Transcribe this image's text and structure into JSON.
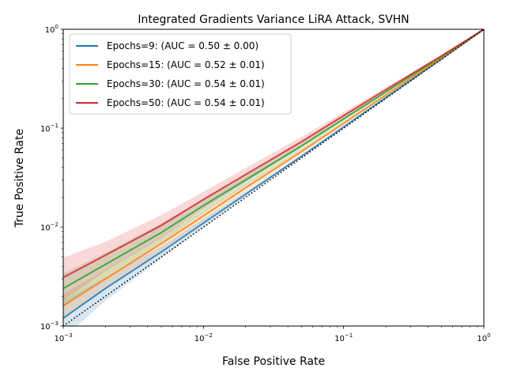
{
  "chart_data": {
    "type": "line",
    "title": "Integrated Gradients Variance LiRA Attack, SVHN",
    "xlabel": "False Positive Rate",
    "ylabel": "True Positive Rate",
    "xscale": "log",
    "yscale": "log",
    "xlim": [
      0.001,
      1
    ],
    "ylim": [
      0.001,
      1
    ],
    "x_ticks": [
      {
        "value": 0.001,
        "base": "10",
        "exp": "−3"
      },
      {
        "value": 0.01,
        "base": "10",
        "exp": "−2"
      },
      {
        "value": 0.1,
        "base": "10",
        "exp": "−1"
      },
      {
        "value": 1,
        "base": "10",
        "exp": "0"
      }
    ],
    "y_ticks": [
      {
        "value": 0.001,
        "base": "10",
        "exp": "−3"
      },
      {
        "value": 0.01,
        "base": "10",
        "exp": "−2"
      },
      {
        "value": 0.1,
        "base": "10",
        "exp": "−1"
      },
      {
        "value": 1,
        "base": "10",
        "exp": "0"
      }
    ],
    "legend_position": "top-left",
    "grid": false,
    "series": [
      {
        "name": "Epochs=9: (AUC = 0.50 ± 0.00)",
        "color": "#1f77b4",
        "x": [
          0.001,
          0.002,
          0.005,
          0.01,
          0.02,
          0.05,
          0.1,
          0.2,
          0.5,
          1
        ],
        "y": [
          0.0012,
          0.0024,
          0.0056,
          0.011,
          0.0215,
          0.052,
          0.103,
          0.204,
          0.502,
          1
        ],
        "lower": [
          0.00075,
          0.0018,
          0.0048,
          0.0099,
          0.0203,
          0.0505,
          0.101,
          0.201,
          0.499,
          1
        ],
        "upper": [
          0.0018,
          0.0031,
          0.0064,
          0.0121,
          0.0228,
          0.0535,
          0.105,
          0.207,
          0.505,
          1
        ]
      },
      {
        "name": "Epochs=15: (AUC = 0.52 ± 0.01)",
        "color": "#ff7f0e",
        "x": [
          0.001,
          0.002,
          0.005,
          0.01,
          0.02,
          0.05,
          0.1,
          0.2,
          0.5,
          1
        ],
        "y": [
          0.0016,
          0.003,
          0.0068,
          0.013,
          0.025,
          0.058,
          0.112,
          0.216,
          0.515,
          1
        ],
        "lower": [
          0.0012,
          0.0024,
          0.0058,
          0.0115,
          0.0228,
          0.0545,
          0.107,
          0.21,
          0.508,
          1
        ],
        "upper": [
          0.0021,
          0.0037,
          0.008,
          0.0147,
          0.0275,
          0.0615,
          0.117,
          0.222,
          0.522,
          1
        ]
      },
      {
        "name": "Epochs=30: (AUC = 0.54 ± 0.01)",
        "color": "#2ca02c",
        "x": [
          0.001,
          0.002,
          0.005,
          0.01,
          0.02,
          0.05,
          0.1,
          0.2,
          0.5,
          1
        ],
        "y": [
          0.0024,
          0.0042,
          0.0088,
          0.0165,
          0.03,
          0.066,
          0.124,
          0.232,
          0.53,
          1
        ],
        "lower": [
          0.0016,
          0.0031,
          0.0069,
          0.0138,
          0.0262,
          0.06,
          0.116,
          0.222,
          0.52,
          1
        ],
        "upper": [
          0.0034,
          0.0055,
          0.0109,
          0.0193,
          0.034,
          0.072,
          0.132,
          0.241,
          0.54,
          1
        ]
      },
      {
        "name": "Epochs=50: (AUC = 0.54 ± 0.01)",
        "color": "#d62728",
        "x": [
          0.001,
          0.002,
          0.005,
          0.01,
          0.02,
          0.05,
          0.1,
          0.2,
          0.5,
          1
        ],
        "y": [
          0.0031,
          0.0052,
          0.0104,
          0.019,
          0.034,
          0.073,
          0.134,
          0.245,
          0.54,
          1
        ],
        "lower": [
          0.0018,
          0.0036,
          0.0078,
          0.0152,
          0.0285,
          0.0645,
          0.123,
          0.232,
          0.528,
          1
        ],
        "upper": [
          0.0049,
          0.0071,
          0.0132,
          0.0228,
          0.0395,
          0.0815,
          0.145,
          0.258,
          0.552,
          1
        ]
      }
    ],
    "reference_line": {
      "x": [
        0.001,
        1
      ],
      "y": [
        0.001,
        1
      ],
      "color": "#000000",
      "style": "dotted"
    }
  }
}
